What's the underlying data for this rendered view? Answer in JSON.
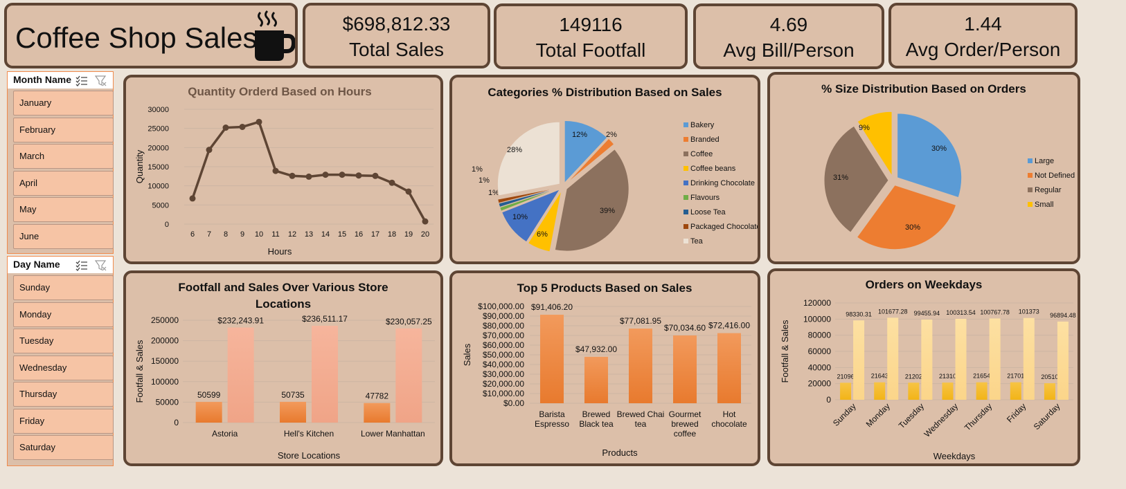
{
  "dashboard": {
    "title": "Coffee Shop Sales",
    "icon": "coffee-mug-icon"
  },
  "kpis": [
    {
      "value": "$698,812.33",
      "label": "Total Sales"
    },
    {
      "value": "149116",
      "label": "Total Footfall"
    },
    {
      "value": "4.69",
      "label": "Avg Bill/Person"
    },
    {
      "value": "1.44",
      "label": "Avg Order/Person"
    }
  ],
  "month_slicer": {
    "header": "Month Name",
    "items": [
      "January",
      "February",
      "March",
      "April",
      "May",
      "June"
    ]
  },
  "day_slicer": {
    "header": "Day Name",
    "items": [
      "Sunday",
      "Monday",
      "Tuesday",
      "Wednesday",
      "Thursday",
      "Friday",
      "Saturday"
    ]
  },
  "colors": {
    "card_bg": "#dcbfa9",
    "card_border": "#5e4534",
    "slicer_button": "#f6c4a5",
    "line": "#5e4534",
    "orange_bar": "#e87a2e",
    "peach_bar": "#f0a487",
    "gold_bar": "#f2b418",
    "light_gold_bar": "#fbd58a"
  },
  "chart_data": [
    {
      "id": "hours",
      "type": "line",
      "title": "Quantity Orderd Based on Hours",
      "xlabel": "Hours",
      "ylabel": "Quantity",
      "x": [
        6,
        7,
        8,
        9,
        10,
        11,
        12,
        13,
        14,
        15,
        16,
        17,
        18,
        19,
        20
      ],
      "values": [
        6700,
        19400,
        25200,
        25400,
        26700,
        13900,
        12600,
        12400,
        12900,
        12900,
        12700,
        12600,
        10800,
        8500,
        700
      ],
      "yticks": [
        "0",
        "5000",
        "10000",
        "15000",
        "20000",
        "25000",
        "30000"
      ],
      "ylim": [
        0,
        30000
      ],
      "grid": true
    },
    {
      "id": "categories",
      "type": "pie",
      "title": "Categories % Distribution Based on Sales",
      "legend_position": "right",
      "categories": [
        "Bakery",
        "Branded",
        "Coffee",
        "Coffee beans",
        "Drinking Chocolate",
        "Flavours",
        "Loose Tea",
        "Packaged Chocolate",
        "Tea"
      ],
      "values": [
        12,
        2,
        39,
        6,
        10,
        1,
        1,
        1,
        28
      ],
      "labels": [
        "12%",
        "2%",
        "39%",
        "6%",
        "10%",
        "1%",
        "1%",
        "1%",
        "28%"
      ],
      "colors": [
        "#5b9bd5",
        "#ed7d31",
        "#8c715e",
        "#ffc000",
        "#4472c4",
        "#70ad47",
        "#255e91",
        "#9e480e",
        "#ece1d4"
      ]
    },
    {
      "id": "sizes",
      "type": "pie",
      "title": "% Size Distribution Based on Orders",
      "legend_position": "right",
      "categories": [
        "Large",
        "Not Defined",
        "Regular",
        "Small"
      ],
      "values": [
        30,
        30,
        31,
        9
      ],
      "labels": [
        "30%",
        "30%",
        "31%",
        "9%"
      ],
      "colors": [
        "#5b9bd5",
        "#ed7d31",
        "#8c715e",
        "#ffc000"
      ]
    },
    {
      "id": "stores",
      "type": "bar",
      "title": "Footfall and Sales Over Various Store Locations",
      "xlabel": "Store Locations",
      "ylabel": "Footfall & Sales",
      "categories": [
        "Astoria",
        "Hell's Kitchen",
        "Lower Manhattan"
      ],
      "series": [
        {
          "values": [
            50599,
            50735,
            47782
          ],
          "labels": [
            "50599",
            "50735",
            "47782"
          ]
        },
        {
          "values": [
            232243.91,
            236511.17,
            230057.25
          ],
          "labels": [
            "$232,243.91",
            "$236,511.17",
            "$230,057.25"
          ]
        }
      ],
      "yticks": [
        "0",
        "50000",
        "100000",
        "150000",
        "200000",
        "250000"
      ],
      "ylim": [
        0,
        250000
      ],
      "grid": true
    },
    {
      "id": "products",
      "type": "bar",
      "title": "Top 5 Products Based on Sales",
      "xlabel": "Products",
      "ylabel": "Sales",
      "categories": [
        [
          "Barista",
          "Espresso"
        ],
        [
          "Brewed",
          "Black tea"
        ],
        [
          "Brewed Chai",
          "tea"
        ],
        [
          "Gourmet",
          "brewed",
          "coffee"
        ],
        [
          "Hot",
          "chocolate"
        ]
      ],
      "values": [
        91406.2,
        47932.0,
        77081.95,
        70034.6,
        72416.0
      ],
      "labels": [
        "$91,406.20",
        "$47,932.00",
        "$77,081.95",
        "$70,034.60",
        "$72,416.00"
      ],
      "yticks": [
        "$0.00",
        "$10,000.00",
        "$20,000.00",
        "$30,000.00",
        "$40,000.00",
        "$50,000.00",
        "$60,000.00",
        "$70,000.00",
        "$80,000.00",
        "$90,000.00",
        "$100,000.00"
      ],
      "ylim": [
        0,
        100000
      ],
      "grid": true
    },
    {
      "id": "weekdays",
      "type": "bar",
      "title": "Orders on Weekdays",
      "xlabel": "Weekdays",
      "ylabel": "Footfall & Sales",
      "categories": [
        "Sunday",
        "Monday",
        "Tuesday",
        "Wednesday",
        "Thursday",
        "Friday",
        "Saturday"
      ],
      "series": [
        {
          "values": [
            21096,
            21643,
            21202,
            21310,
            21654,
            21701,
            20510
          ],
          "labels": [
            "21096",
            "21643",
            "21202",
            "21310",
            "21654",
            "21701",
            "20510"
          ]
        },
        {
          "values": [
            98330.31,
            101677.28,
            99455.94,
            100313.54,
            100767.78,
            101373,
            96894.48
          ],
          "labels": [
            "98330.31",
            "101677.28",
            "99455.94",
            "100313.54",
            "100767.78",
            "101373",
            "96894.48"
          ]
        }
      ],
      "yticks": [
        "0",
        "20000",
        "40000",
        "60000",
        "80000",
        "100000",
        "120000"
      ],
      "ylim": [
        0,
        120000
      ],
      "grid": true
    }
  ]
}
